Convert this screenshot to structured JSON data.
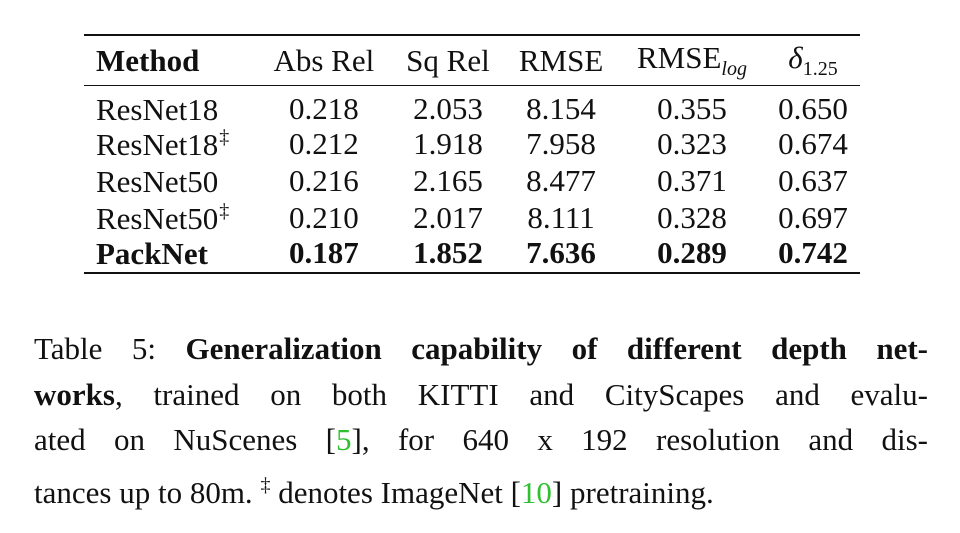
{
  "table": {
    "headers": {
      "method": "Method",
      "abs_rel": "Abs Rel",
      "sq_rel": "Sq Rel",
      "rmse": "RMSE",
      "rmse_log_base": "RMSE",
      "rmse_log_sub": "log",
      "delta_symbol": "δ",
      "delta_sub": "1.25"
    },
    "rows": [
      {
        "method": "ResNet18",
        "dagger": "",
        "abs_rel": "0.218",
        "sq_rel": "2.053",
        "rmse": "8.154",
        "rmse_log": "0.355",
        "delta": "0.650"
      },
      {
        "method": "ResNet18",
        "dagger": "‡",
        "abs_rel": "0.212",
        "sq_rel": "1.918",
        "rmse": "7.958",
        "rmse_log": "0.323",
        "delta": "0.674"
      },
      {
        "method": "ResNet50",
        "dagger": "",
        "abs_rel": "0.216",
        "sq_rel": "2.165",
        "rmse": "8.477",
        "rmse_log": "0.371",
        "delta": "0.637"
      },
      {
        "method": "ResNet50",
        "dagger": "‡",
        "abs_rel": "0.210",
        "sq_rel": "2.017",
        "rmse": "8.111",
        "rmse_log": "0.328",
        "delta": "0.697"
      },
      {
        "method": "PackNet",
        "dagger": "",
        "abs_rel": "0.187",
        "sq_rel": "1.852",
        "rmse": "7.636",
        "rmse_log": "0.289",
        "delta": "0.742"
      }
    ]
  },
  "caption": {
    "label": "Table 5:",
    "bold_title_1": "Generalization capability of different depth net-",
    "bold_title_2": "works",
    "text_1": ", trained on both KITTI and CityScapes and evalu-",
    "text_2a": "ated on NuScenes [",
    "ref_1": "5",
    "text_2b": "], for 640 x 192 resolution and dis-",
    "text_3a": "tances up to 80m.",
    "dagger": "‡",
    "text_3b": "denotes ImageNet [",
    "ref_2": "10",
    "text_3c": "] pretraining."
  },
  "colors": {
    "text": "#111111",
    "reference_link": "#2fbf2f",
    "background": "#ffffff"
  }
}
